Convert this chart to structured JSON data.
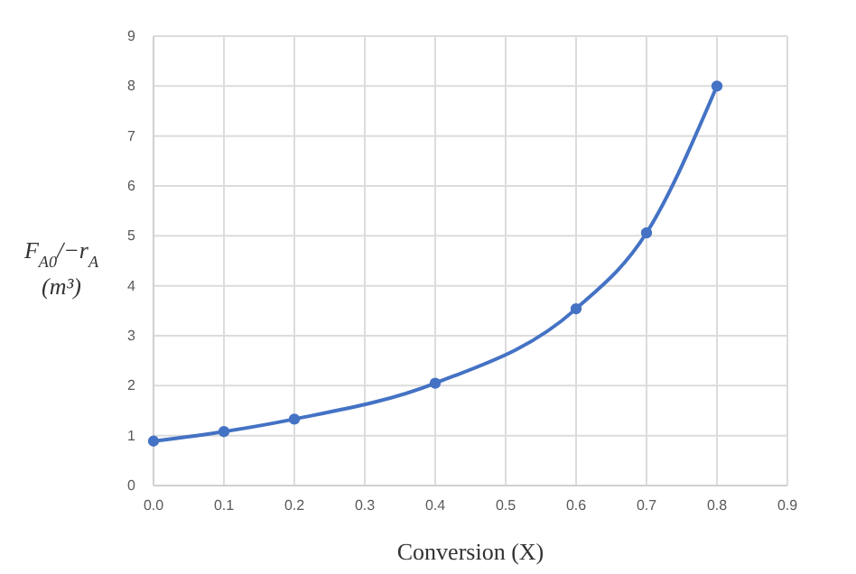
{
  "chart_data": {
    "type": "line",
    "xlabel": "Conversion (X)",
    "ylabel": "F$_{A0}$/−r$_{A}$ (m³)",
    "x": [
      0.0,
      0.1,
      0.2,
      0.4,
      0.6,
      0.7,
      0.8
    ],
    "series": [
      {
        "color": "#4472c4",
        "values": [
          0.89,
          1.08,
          1.33,
          2.05,
          3.54,
          5.06,
          8.0
        ]
      }
    ],
    "xlim": [
      0,
      0.9
    ],
    "xticks": [
      {
        "value": 0,
        "label": "0.0"
      },
      0.1,
      0.2,
      0.3,
      0.4,
      0.5,
      0.6,
      0.7,
      0.8,
      0.9
    ],
    "ylim": [
      0,
      9
    ],
    "yticks": [
      0,
      1,
      2,
      3,
      4,
      5,
      6,
      7,
      8,
      9
    ],
    "grid": true,
    "marker": "circle",
    "line_style": "solid"
  }
}
